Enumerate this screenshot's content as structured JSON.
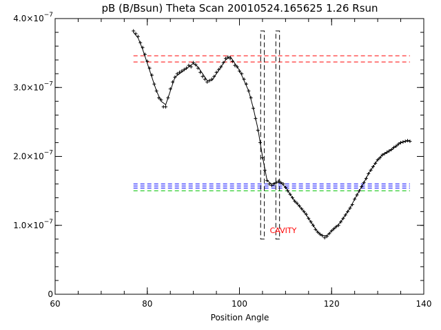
{
  "chart_data": {
    "type": "scatter",
    "title": "pB (B/Bsun) Theta Scan 20010524.165625 1.26 Rsun",
    "xlabel": "Position Angle",
    "ylabel": "",
    "xlim": [
      60,
      140
    ],
    "ylim": [
      0,
      4e-07
    ],
    "x_ticks": [
      {
        "value": 60,
        "label": "60"
      },
      {
        "value": 80,
        "label": "80"
      },
      {
        "value": 100,
        "label": "100"
      },
      {
        "value": 120,
        "label": "120"
      },
      {
        "value": 140,
        "label": "140"
      }
    ],
    "x_minor_step": 5,
    "y_ticks": [
      {
        "value": 0,
        "mantissa": "0",
        "exponent": ""
      },
      {
        "value": 1e-07,
        "mantissa": "1.0×10",
        "exponent": "−7"
      },
      {
        "value": 2e-07,
        "mantissa": "2.0×10",
        "exponent": "−7"
      },
      {
        "value": 3e-07,
        "mantissa": "3.0×10",
        "exponent": "−7"
      },
      {
        "value": 4e-07,
        "mantissa": "4.0×10",
        "exponent": "−7"
      }
    ],
    "y_minor_step": 2e-08,
    "grid": false,
    "colors": {
      "data": "#000000",
      "red": "#ff0000",
      "blue": "#0000ff",
      "green": "#00c000",
      "annotation": "#ff0000"
    },
    "curve": {
      "x": [
        77,
        78,
        79,
        80,
        81,
        82,
        83,
        84,
        85,
        86,
        87,
        88,
        89,
        90,
        91,
        92,
        93,
        94,
        95,
        96,
        97,
        98,
        99,
        100,
        101,
        102,
        103,
        104,
        105,
        106,
        107,
        108,
        109,
        110,
        111,
        112,
        113,
        114,
        115,
        116,
        117,
        118,
        119,
        120,
        121,
        122,
        123,
        124,
        125,
        126,
        127,
        128,
        129,
        130,
        131,
        132,
        133,
        134,
        135,
        136,
        137
      ],
      "y": [
        3.8e-07,
        3.72e-07,
        3.55e-07,
        3.35e-07,
        3.15e-07,
        2.95e-07,
        2.8e-07,
        2.75e-07,
        2.95e-07,
        3.15e-07,
        3.2e-07,
        3.25e-07,
        3.3e-07,
        3.35e-07,
        3.3e-07,
        3.2e-07,
        3.1e-07,
        3.1e-07,
        3.2e-07,
        3.3e-07,
        3.4e-07,
        3.45e-07,
        3.35e-07,
        3.25e-07,
        3.1e-07,
        2.95e-07,
        2.7e-07,
        2.4e-07,
        2e-07,
        1.65e-07,
        1.6e-07,
        1.62e-07,
        1.62e-07,
        1.55e-07,
        1.45e-07,
        1.35e-07,
        1.28e-07,
        1.2e-07,
        1.1e-07,
        1e-07,
        9e-08,
        8.5e-08,
        8.5e-08,
        9.2e-08,
        9.8e-08,
        1.05e-07,
        1.15e-07,
        1.25e-07,
        1.38e-07,
        1.5e-07,
        1.62e-07,
        1.75e-07,
        1.85e-07,
        1.95e-07,
        2.02e-07,
        2.06e-07,
        2.1e-07,
        2.15e-07,
        2.2e-07,
        2.22e-07,
        2.23e-07
      ]
    },
    "points": {
      "x": [
        77,
        77.5,
        78,
        78.5,
        79,
        79.5,
        80,
        80.5,
        81,
        81.5,
        82,
        82.5,
        83,
        83.5,
        84,
        84.5,
        85,
        85.5,
        86,
        86.5,
        87,
        87.5,
        88,
        88.5,
        89,
        89.5,
        90,
        90.5,
        91,
        91.5,
        92,
        92.5,
        93,
        93.5,
        94,
        94.5,
        95,
        95.5,
        96,
        96.5,
        97,
        97.5,
        98,
        98.5,
        99,
        99.5,
        100,
        100.5,
        101,
        101.5,
        102,
        102.5,
        103,
        103.5,
        104,
        104.5,
        105,
        105.5,
        106,
        106.5,
        107,
        107.5,
        108,
        108.5,
        109,
        109.5,
        110,
        110.5,
        111,
        111.5,
        112,
        112.5,
        113,
        113.5,
        114,
        114.5,
        115,
        115.5,
        116,
        116.5,
        117,
        117.5,
        118,
        118.5,
        119,
        119.5,
        120,
        120.5,
        121,
        121.5,
        122,
        122.5,
        123,
        123.5,
        124,
        124.5,
        125,
        125.5,
        126,
        126.5,
        127,
        127.5,
        128,
        128.5,
        129,
        129.5,
        130,
        130.5,
        131,
        131.5,
        132,
        132.5,
        133,
        133.5,
        134,
        134.5,
        135,
        135.5,
        136,
        136.5,
        137
      ],
      "y": [
        3.82e-07,
        3.78e-07,
        3.74e-07,
        3.65e-07,
        3.58e-07,
        3.48e-07,
        3.38e-07,
        3.28e-07,
        3.18e-07,
        3.05e-07,
        2.95e-07,
        2.85e-07,
        2.82e-07,
        2.72e-07,
        2.72e-07,
        2.85e-07,
        2.98e-07,
        3.08e-07,
        3.15e-07,
        3.2e-07,
        3.22e-07,
        3.24e-07,
        3.26e-07,
        3.28e-07,
        3.32e-07,
        3.3e-07,
        3.36e-07,
        3.33e-07,
        3.28e-07,
        3.22e-07,
        3.16e-07,
        3.12e-07,
        3.08e-07,
        3.1e-07,
        3.12e-07,
        3.16e-07,
        3.22e-07,
        3.26e-07,
        3.3e-07,
        3.36e-07,
        3.42e-07,
        3.44e-07,
        3.42e-07,
        3.38e-07,
        3.32e-07,
        3.3e-07,
        3.24e-07,
        3.2e-07,
        3.12e-07,
        3.05e-07,
        2.95e-07,
        2.85e-07,
        2.7e-07,
        2.55e-07,
        2.38e-07,
        2.2e-07,
        1.98e-07,
        1.8e-07,
        1.65e-07,
        1.6e-07,
        1.58e-07,
        1.6e-07,
        1.62e-07,
        1.64e-07,
        1.62e-07,
        1.6e-07,
        1.55e-07,
        1.5e-07,
        1.45e-07,
        1.4e-07,
        1.35e-07,
        1.32e-07,
        1.28e-07,
        1.24e-07,
        1.2e-07,
        1.16e-07,
        1.1e-07,
        1.05e-07,
        1e-07,
        9.4e-08,
        9e-08,
        8.7e-08,
        8.5e-08,
        8.2e-08,
        8.4e-08,
        8.8e-08,
        9.2e-08,
        9.5e-08,
        9.8e-08,
        1e-07,
        1.05e-07,
        1.1e-07,
        1.15e-07,
        1.2e-07,
        1.25e-07,
        1.3e-07,
        1.38e-07,
        1.44e-07,
        1.5e-07,
        1.56e-07,
        1.62e-07,
        1.68e-07,
        1.75e-07,
        1.8e-07,
        1.85e-07,
        1.9e-07,
        1.95e-07,
        1.98e-07,
        2.02e-07,
        2.04e-07,
        2.06e-07,
        2.08e-07,
        2.1e-07,
        2.13e-07,
        2.15e-07,
        2.18e-07,
        2.2e-07,
        2.21e-07,
        2.22e-07,
        2.23e-07,
        2.22e-07
      ]
    },
    "red_hlines": [
      3.46e-07,
      3.37e-07
    ],
    "blue_hlines": [
      1.6e-07,
      1.57e-07,
      1.54e-07
    ],
    "green_hlines": [
      1.5e-07
    ],
    "hlines_xrange": [
      77,
      137
    ],
    "cavity_boxes": [
      {
        "x0": 104.6,
        "x1": 105.4,
        "y0": 8e-08,
        "y1": 3.82e-07
      },
      {
        "x0": 107.9,
        "x1": 108.7,
        "y0": 8e-08,
        "y1": 3.82e-07
      }
    ],
    "annotation": {
      "text": "CAVITY",
      "x": 106,
      "y": 9.3e-08
    }
  }
}
